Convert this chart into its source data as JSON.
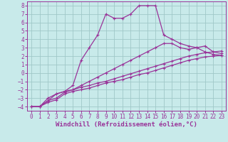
{
  "xlabel": "Windchill (Refroidissement éolien,°C)",
  "bg_color": "#c8eaea",
  "grid_color": "#a0c8c8",
  "line_color": "#993399",
  "xlim": [
    -0.5,
    23.5
  ],
  "ylim": [
    -4.5,
    8.5
  ],
  "xticks": [
    0,
    1,
    2,
    3,
    4,
    5,
    6,
    7,
    8,
    9,
    10,
    11,
    12,
    13,
    14,
    15,
    16,
    17,
    18,
    19,
    20,
    21,
    22,
    23
  ],
  "yticks": [
    -4,
    -3,
    -2,
    -1,
    0,
    1,
    2,
    3,
    4,
    5,
    6,
    7,
    8
  ],
  "line1_x": [
    0,
    1,
    2,
    3,
    4,
    5,
    6,
    7,
    8,
    9,
    10,
    11,
    12,
    13,
    14,
    15,
    16,
    17,
    18,
    19,
    20,
    21,
    22,
    23
  ],
  "line1_y": [
    -4,
    -4,
    -3.5,
    -3.2,
    -2.5,
    -2.2,
    -2.0,
    -1.8,
    -1.5,
    -1.2,
    -1.0,
    -0.8,
    -0.5,
    -0.2,
    0.0,
    0.3,
    0.6,
    0.9,
    1.2,
    1.5,
    1.7,
    1.9,
    2.0,
    2.1
  ],
  "line2_x": [
    0,
    1,
    2,
    3,
    4,
    5,
    6,
    7,
    8,
    9,
    10,
    11,
    12,
    13,
    14,
    15,
    16,
    17,
    18,
    19,
    20,
    21,
    22,
    23
  ],
  "line2_y": [
    -4,
    -4,
    -3.3,
    -3.0,
    -2.3,
    -2.0,
    -1.7,
    -1.5,
    -1.2,
    -1.0,
    -0.7,
    -0.4,
    -0.1,
    0.2,
    0.5,
    0.8,
    1.1,
    1.4,
    1.7,
    2.0,
    2.2,
    2.4,
    2.5,
    2.6
  ],
  "line3_x": [
    0,
    1,
    2,
    3,
    4,
    5,
    6,
    7,
    8,
    9,
    10,
    11,
    12,
    13,
    14,
    15,
    16,
    17,
    18,
    19,
    20,
    21,
    22,
    23
  ],
  "line3_y": [
    -4,
    -4,
    -3.0,
    -2.5,
    -2.2,
    -2.0,
    -1.5,
    -1.0,
    -0.5,
    0.0,
    0.5,
    1.0,
    1.5,
    2.0,
    2.5,
    3.0,
    3.5,
    3.5,
    3.0,
    2.8,
    3.0,
    3.2,
    2.5,
    2.3
  ],
  "line4_x": [
    1,
    2,
    3,
    4,
    5,
    6,
    7,
    8,
    9,
    10,
    11,
    12,
    13,
    14,
    15,
    16,
    17,
    18,
    19,
    20,
    21,
    22,
    23
  ],
  "line4_y": [
    -4,
    -3.3,
    -2.5,
    -2.2,
    -1.5,
    1.5,
    3.0,
    4.5,
    7.0,
    6.5,
    6.5,
    7.0,
    8.0,
    8.0,
    8.0,
    4.5,
    4.0,
    3.5,
    3.2,
    3.0,
    2.5,
    2.2,
    2.1
  ],
  "marker_size": 2.5,
  "line_width": 0.9,
  "font_size_label": 6.5,
  "font_size_tick": 5.5
}
